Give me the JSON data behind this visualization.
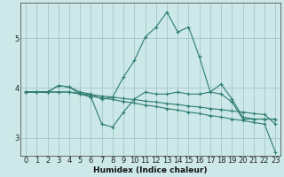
{
  "xlabel": "Humidex (Indice chaleur)",
  "bg_color": "#cce8e8",
  "grid_color": "#aacccc",
  "line_color": "#2e7d6e",
  "xlim": [
    -0.5,
    23.5
  ],
  "ylim": [
    2.65,
    5.7
  ],
  "yticks": [
    3,
    4,
    5
  ],
  "xticks": [
    0,
    1,
    2,
    3,
    4,
    5,
    6,
    7,
    8,
    9,
    10,
    11,
    12,
    13,
    14,
    15,
    16,
    17,
    18,
    19,
    20,
    21,
    22,
    23
  ],
  "series": [
    [
      3.92,
      3.92,
      3.92,
      4.05,
      4.02,
      3.92,
      3.88,
      3.78,
      3.82,
      4.22,
      4.55,
      5.02,
      5.22,
      5.52,
      5.12,
      5.22,
      4.62,
      3.92,
      4.08,
      3.78,
      3.42,
      3.38,
      3.38,
      3.38
    ],
    [
      3.92,
      3.92,
      3.92,
      4.05,
      4.02,
      3.88,
      3.82,
      3.28,
      3.22,
      3.52,
      3.78,
      3.92,
      3.88,
      3.88,
      3.92,
      3.88,
      3.88,
      3.92,
      3.88,
      3.72,
      3.38,
      3.38,
      3.38,
      3.38
    ],
    [
      3.92,
      3.92,
      3.92,
      3.92,
      3.92,
      3.89,
      3.87,
      3.84,
      3.82,
      3.79,
      3.77,
      3.74,
      3.72,
      3.69,
      3.67,
      3.64,
      3.62,
      3.59,
      3.57,
      3.54,
      3.52,
      3.49,
      3.47,
      3.28
    ],
    [
      3.92,
      3.92,
      3.92,
      3.92,
      3.92,
      3.88,
      3.84,
      3.8,
      3.77,
      3.73,
      3.7,
      3.66,
      3.63,
      3.59,
      3.56,
      3.52,
      3.49,
      3.45,
      3.42,
      3.38,
      3.35,
      3.31,
      3.28,
      2.72
    ]
  ]
}
